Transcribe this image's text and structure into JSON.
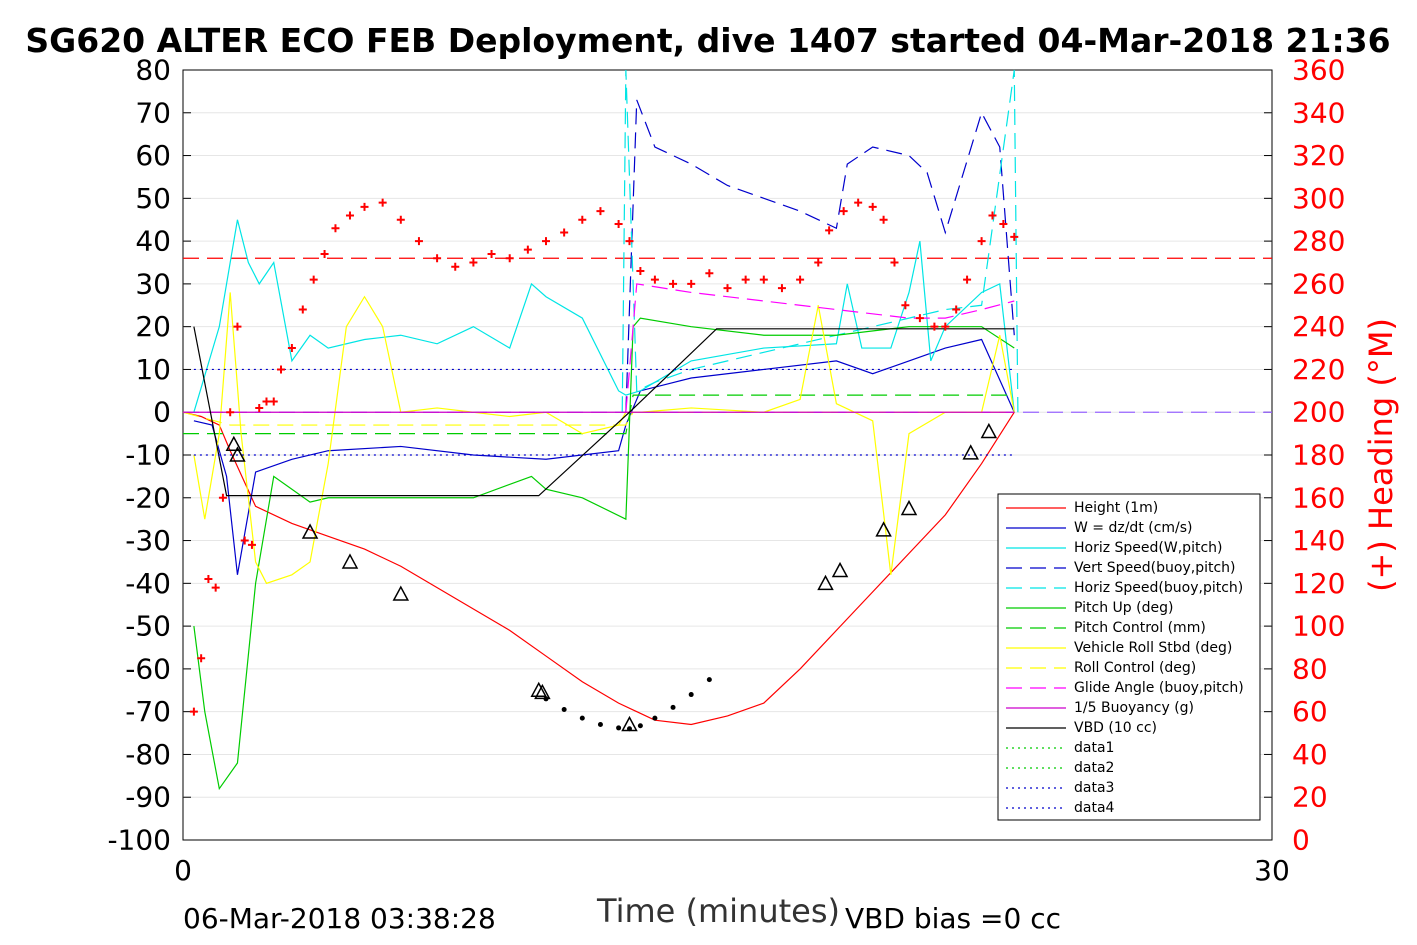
{
  "chart_data": {
    "type": "line",
    "title": "SG620 ALTER ECO FEB Deployment, dive 1407 started 04-Mar-2018 21:36",
    "xlabel": "Time (minutes)",
    "ylabel_right": "(+) Heading (°M)",
    "xlim": [
      0,
      30
    ],
    "ylim_left": [
      -100,
      80
    ],
    "ylim_right": [
      0,
      360
    ],
    "x_ticks": [
      "0",
      "30"
    ],
    "y_ticks_left": [
      "80",
      "70",
      "60",
      "50",
      "40",
      "30",
      "20",
      "10",
      "0",
      "-10",
      "-20",
      "-30",
      "-40",
      "-50",
      "-60",
      "-70",
      "-80",
      "-90",
      "-100"
    ],
    "y_ticks_right": [
      "360",
      "340",
      "320",
      "300",
      "280",
      "260",
      "240",
      "220",
      "200",
      "180",
      "160",
      "140",
      "120",
      "100",
      "80",
      "60",
      "40",
      "20",
      "0"
    ],
    "footer_left": "06-Mar-2018 03:38:28",
    "footer_right": "VBD bias =0 cc",
    "legend_position": "lower-right",
    "series": [
      {
        "name": "Height (1m)",
        "color": "#ff0000",
        "style": "solid",
        "x": [
          0,
          0.5,
          1,
          1.3,
          2,
          3,
          4,
          5,
          6,
          7,
          8,
          9,
          10,
          11,
          12,
          13,
          14,
          15,
          16,
          17,
          18,
          19,
          20,
          21,
          22,
          22.9
        ],
        "y": [
          0,
          -1,
          -3,
          -9,
          -22,
          -26,
          -29,
          -32,
          -36,
          -41,
          -46,
          -51,
          -57,
          -63,
          -68,
          -72,
          -73,
          -71,
          -68,
          -60,
          -51,
          -42,
          -33,
          -24,
          -12,
          0
        ]
      },
      {
        "name": "W = dz/dt (cm/s)",
        "color": "#0000cc",
        "style": "solid",
        "x": [
          0.3,
          0.8,
          1.2,
          1.5,
          2,
          3,
          4,
          6,
          8,
          10,
          12,
          12.2,
          12.6,
          14,
          16,
          18,
          19,
          20,
          21,
          22,
          22.9
        ],
        "y": [
          -2,
          -3,
          -15,
          -38,
          -14,
          -11,
          -9,
          -8,
          -10,
          -11,
          -9,
          -3,
          5,
          8,
          10,
          12,
          9,
          12,
          15,
          17,
          0
        ]
      },
      {
        "name": "Horiz Speed(W,pitch)",
        "color": "#00e5e5",
        "style": "solid",
        "x": [
          0.3,
          1,
          1.5,
          1.8,
          2.1,
          2.5,
          3,
          3.5,
          4,
          5,
          6,
          7,
          8,
          9,
          9.6,
          10,
          11,
          12,
          12.2,
          12.6,
          14,
          16,
          18,
          18.3,
          18.7,
          19.5,
          20,
          20.3,
          20.6,
          21,
          22,
          22.5,
          22.9
        ],
        "y": [
          0,
          20,
          45,
          35,
          30,
          35,
          12,
          18,
          15,
          17,
          18,
          16,
          20,
          15,
          30,
          27,
          22,
          5,
          4,
          5,
          12,
          15,
          16,
          30,
          15,
          15,
          28,
          40,
          12,
          20,
          28,
          30,
          0
        ]
      },
      {
        "name": "Vert Speed(buoy,pitch)",
        "color": "#0000cc",
        "style": "dashed",
        "x": [
          12.2,
          12.5,
          13,
          14,
          15,
          16,
          17,
          18,
          18.3,
          19,
          20,
          20.5,
          21,
          22,
          22.5,
          22.9
        ],
        "y": [
          0,
          73,
          62,
          58,
          53,
          50,
          47,
          43,
          58,
          62,
          60,
          56,
          42,
          70,
          62,
          18
        ]
      },
      {
        "name": "Horiz Speed(buoy,pitch)",
        "color": "#00e5e5",
        "style": "dashed",
        "x": [
          12.1,
          12.2,
          12.5,
          13,
          14,
          15,
          16,
          17,
          18,
          19,
          20,
          21,
          22,
          22.9,
          23
        ],
        "y": [
          0,
          80,
          5,
          7,
          10,
          12,
          14,
          16,
          18,
          20,
          22,
          24,
          25,
          80,
          0
        ]
      },
      {
        "name": "Pitch Up (deg)",
        "color": "#00cc00",
        "style": "solid",
        "x": [
          0.3,
          0.6,
          1,
          1.5,
          2,
          2.5,
          3,
          3.5,
          4,
          6,
          8,
          9.6,
          10,
          11,
          12.2,
          12.4,
          12.6,
          14,
          16,
          18,
          20,
          22,
          22.9
        ],
        "y": [
          -50,
          -70,
          -88,
          -82,
          -40,
          -15,
          -18,
          -21,
          -20,
          -20,
          -20,
          -15,
          -18,
          -20,
          -25,
          20,
          22,
          20,
          18,
          18,
          20,
          20,
          15
        ]
      },
      {
        "name": "Pitch Control (mm)",
        "color": "#00cc00",
        "style": "dashed",
        "x": [
          0,
          1.5,
          12.2,
          12.4,
          22.9
        ],
        "y": [
          -5,
          -5,
          -5,
          4,
          4
        ]
      },
      {
        "name": "Vehicle Roll Stbd (deg)",
        "color": "#ffff00",
        "style": "solid",
        "x": [
          0.3,
          0.6,
          1,
          1.3,
          1.6,
          2,
          2.3,
          3,
          3.5,
          4,
          4.5,
          5,
          5.5,
          6,
          7,
          8,
          9,
          10,
          11,
          12,
          12.2,
          12.6,
          14,
          16,
          17,
          17.5,
          18,
          19,
          19.5,
          20,
          21,
          22,
          22.5,
          22.9
        ],
        "y": [
          -10,
          -25,
          -5,
          28,
          -5,
          -35,
          -40,
          -38,
          -35,
          -12,
          20,
          27,
          20,
          0,
          1,
          0,
          -1,
          0,
          -5,
          -3,
          0,
          0,
          1,
          0,
          3,
          25,
          2,
          -2,
          -38,
          -5,
          0,
          0,
          18,
          0
        ]
      },
      {
        "name": "Roll Control (deg)",
        "color": "#ffff00",
        "style": "dashed",
        "x": [
          0,
          1.3,
          12.2,
          12.4,
          22.9
        ],
        "y": [
          0,
          -3,
          -3,
          0,
          0
        ]
      },
      {
        "name": "Glide Angle (buoy,pitch)",
        "color": "#ff00ff",
        "style": "dashed",
        "x": [
          12.2,
          12.5,
          14,
          16,
          18,
          20,
          21,
          22,
          22.9
        ],
        "y": [
          0,
          30,
          28,
          26,
          24,
          22,
          22,
          24,
          26
        ]
      },
      {
        "name": "1/5 Buoyancy (g)",
        "color": "#cc00cc",
        "style": "solid",
        "x": [
          0,
          22.9
        ],
        "y": [
          0,
          0
        ]
      },
      {
        "name": "VBD (10 cc)",
        "color": "#000000",
        "style": "solid",
        "x": [
          0.3,
          1.2,
          9.8,
          12.3,
          14.7,
          22.9
        ],
        "y": [
          20,
          -19.5,
          -19.5,
          0,
          19.5,
          19.5
        ]
      },
      {
        "name": "data1",
        "color": "#00cc00",
        "style": "dotted",
        "x": [],
        "y": []
      },
      {
        "name": "data2",
        "color": "#00cc00",
        "style": "dotted",
        "x": [],
        "y": []
      },
      {
        "name": "data3",
        "color": "#0000cc",
        "style": "dotted",
        "x": [
          0.3,
          22.9
        ],
        "y": [
          10,
          10
        ]
      },
      {
        "name": "data4",
        "color": "#0000cc",
        "style": "dotted",
        "x": [
          0.3,
          22.9
        ],
        "y": [
          -10,
          -10
        ]
      }
    ],
    "reference_lines": [
      {
        "color": "#ff0000",
        "style": "dashed",
        "axis": "right",
        "value": 272
      },
      {
        "color": "#9966ff",
        "style": "dashed",
        "axis": "left",
        "value": 0
      }
    ],
    "heading_points": {
      "color": "#ff0000",
      "marker": "+",
      "axis": "right",
      "x": [
        0.3,
        0.5,
        0.7,
        0.9,
        1.1,
        1.3,
        1.5,
        1.7,
        1.9,
        2.1,
        2.3,
        2.5,
        2.7,
        3.0,
        3.3,
        3.6,
        3.9,
        4.2,
        4.6,
        5.0,
        5.5,
        6.0,
        6.5,
        7.0,
        7.5,
        8.0,
        8.5,
        9.0,
        9.5,
        10.0,
        10.5,
        11.0,
        11.5,
        12.0,
        12.3,
        12.6,
        13.0,
        13.5,
        14.0,
        14.5,
        15.0,
        15.5,
        16.0,
        16.5,
        17.0,
        17.5,
        17.8,
        18.2,
        18.6,
        19.0,
        19.3,
        19.6,
        19.9,
        20.3,
        20.7,
        21.0,
        21.3,
        21.6,
        22.0,
        22.3,
        22.6,
        22.9
      ],
      "y": [
        60,
        85,
        122,
        118,
        160,
        200,
        240,
        140,
        138,
        202,
        205,
        205,
        220,
        230,
        248,
        262,
        274,
        286,
        292,
        296,
        298,
        290,
        280,
        272,
        268,
        270,
        274,
        272,
        276,
        280,
        284,
        290,
        294,
        288,
        280,
        266,
        262,
        260,
        260,
        265,
        258,
        262,
        262,
        258,
        262,
        270,
        285,
        294,
        298,
        296,
        290,
        270,
        250,
        244,
        240,
        240,
        248,
        262,
        280,
        292,
        288,
        282
      ]
    },
    "descent_markers": {
      "marker": "triangle",
      "x": [
        1.4,
        1.5,
        3.5,
        4.6,
        6.0,
        9.8,
        9.9,
        12.3,
        17.7,
        18.1,
        19.3,
        20.0,
        21.7,
        22.2
      ],
      "y": [
        -7.5,
        -10,
        -28,
        -35,
        -42.5,
        -65,
        -65.5,
        -73,
        -40,
        -37,
        -27.5,
        -22.5,
        -9.5,
        -4.5
      ]
    },
    "bottom_dots": {
      "x": [
        10.0,
        10.5,
        11.0,
        11.5,
        12.0,
        12.3,
        12.6,
        13.0,
        13.5,
        14.0,
        14.5
      ],
      "y": [
        -67,
        -69.5,
        -71.5,
        -73,
        -73.8,
        -74,
        -73.3,
        -71.5,
        -69,
        -66,
        -62.5
      ]
    }
  }
}
